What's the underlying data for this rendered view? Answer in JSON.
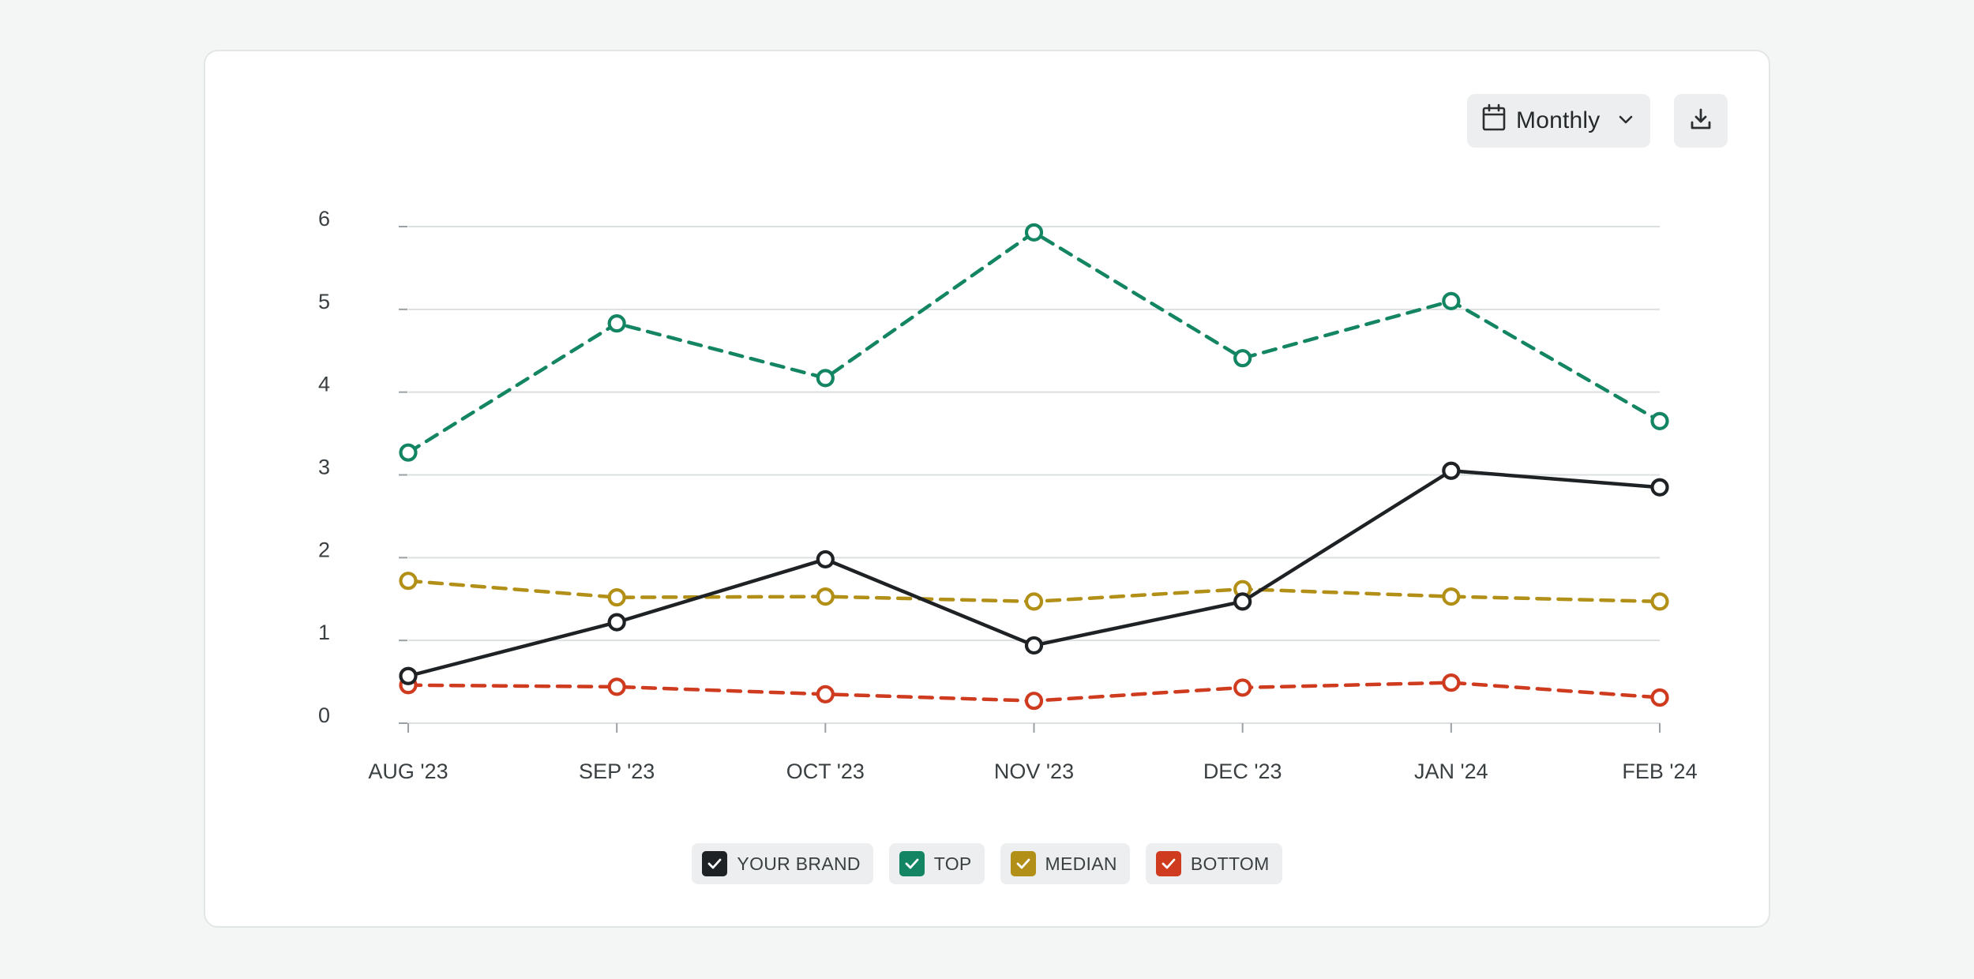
{
  "controls": {
    "period": "Monthly",
    "calendar_icon": "calendar-icon",
    "chevron_icon": "chevron-down-icon",
    "download_icon": "download-icon"
  },
  "colors": {
    "your_brand": "#1f2224",
    "top": "#138562",
    "median": "#b28f16",
    "bottom": "#cf3b1f",
    "grid": "#dcdfe0",
    "text": "#3a3f42"
  },
  "chart_data": {
    "type": "line",
    "categories": [
      "AUG '23",
      "SEP '23",
      "OCT '23",
      "NOV '23",
      "DEC '23",
      "JAN '24",
      "FEB '24"
    ],
    "yticks": [
      "0",
      "1",
      "2",
      "3",
      "4",
      "5",
      "6"
    ],
    "ylim": [
      0,
      6
    ],
    "grid": true,
    "legend_position": "bottom-center",
    "series": [
      {
        "name": "YOUR BRAND",
        "key": "your_brand",
        "style": "solid",
        "values": [
          0.57,
          1.22,
          1.98,
          0.94,
          1.47,
          3.05,
          2.85
        ]
      },
      {
        "name": "TOP",
        "key": "top",
        "style": "dashed",
        "values": [
          3.27,
          4.83,
          4.17,
          5.93,
          4.41,
          5.1,
          3.65
        ]
      },
      {
        "name": "MEDIAN",
        "key": "median",
        "style": "dashed",
        "values": [
          1.72,
          1.52,
          1.53,
          1.47,
          1.62,
          1.53,
          1.47
        ]
      },
      {
        "name": "BOTTOM",
        "key": "bottom",
        "style": "dashed",
        "values": [
          0.46,
          0.44,
          0.35,
          0.27,
          0.43,
          0.49,
          0.31
        ]
      }
    ]
  }
}
